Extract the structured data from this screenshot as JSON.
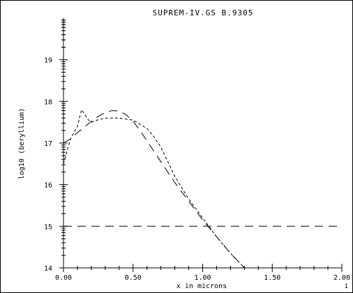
{
  "footer": "1",
  "chart_data": {
    "type": "line",
    "title": "SUPREM-IV.GS B.9305",
    "xlabel": "x in microns",
    "ylabel": "log10 (beryllium)",
    "xlim": [
      0.0,
      2.0
    ],
    "ylim": [
      14,
      20
    ],
    "x_ticks": [
      "0.00",
      "0.50",
      "1.00",
      "1.50",
      "2.00"
    ],
    "y_ticks": [
      "14",
      "15",
      "16",
      "17",
      "18",
      "19"
    ],
    "grid": false,
    "legend": "none",
    "series": [
      {
        "style": "long-dash",
        "x": [
          0.0,
          0.05,
          0.1,
          0.15,
          0.2,
          0.25,
          0.3,
          0.35,
          0.4,
          0.45,
          0.5,
          0.55,
          0.6,
          0.65,
          0.7,
          0.8,
          0.9,
          1.0,
          1.1,
          1.2,
          1.3
        ],
        "y": [
          17.0,
          17.1,
          17.25,
          17.38,
          17.52,
          17.64,
          17.73,
          17.78,
          17.77,
          17.68,
          17.52,
          17.3,
          17.05,
          16.8,
          16.55,
          16.05,
          15.6,
          15.15,
          14.75,
          14.35,
          14.0
        ]
      },
      {
        "style": "short-dash",
        "x": [
          0.0,
          0.05,
          0.1,
          0.13,
          0.15,
          0.18,
          0.2,
          0.25,
          0.3,
          0.4,
          0.5,
          0.55,
          0.6,
          0.65,
          0.7,
          0.8,
          0.9,
          1.0,
          1.1,
          1.2,
          1.3
        ],
        "y": [
          16.5,
          17.1,
          17.4,
          17.8,
          17.7,
          17.55,
          17.5,
          17.56,
          17.6,
          17.6,
          17.55,
          17.45,
          17.35,
          17.15,
          16.9,
          16.2,
          15.65,
          15.2,
          14.75,
          14.35,
          14.0
        ]
      },
      {
        "style": "long-dash",
        "x": [
          0.0,
          2.0
        ],
        "y": [
          15.0,
          15.0
        ]
      }
    ]
  }
}
